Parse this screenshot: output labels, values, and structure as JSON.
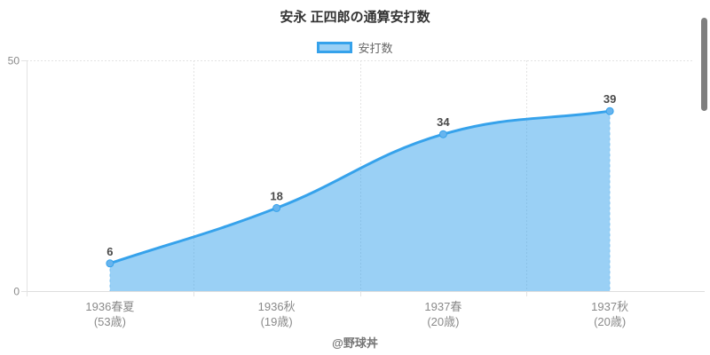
{
  "chart_data": {
    "type": "area",
    "title": "安永 正四郎の通算安打数",
    "legend_position": "top",
    "categories": [
      "1936春夏",
      "1936秋",
      "1937春",
      "1937秋"
    ],
    "category_sublabels": [
      "(53歳)",
      "(19歳)",
      "(20歳)",
      "(20歳)"
    ],
    "series": [
      {
        "name": "安打数",
        "values": [
          6,
          18,
          34,
          39
        ]
      }
    ],
    "ylim": [
      0,
      50
    ],
    "yticks": [
      0,
      50
    ],
    "grid": "dashed",
    "line_tension": 0.4,
    "colors": {
      "line": "#36a2eb",
      "fill": "rgba(54,162,235,0.5)",
      "point_fill": "#67b4ee",
      "point_stroke": "#36a2eb",
      "edge_dash": "rgba(54,162,235,0.45)",
      "grid": "#e3e3e3",
      "title_text": "#333333",
      "tick_text": "#8a8a8a",
      "value_text": "#4a4a4a",
      "legend_text": "#666666"
    }
  },
  "footer": {
    "credit": "@野球丼"
  },
  "scrollbar": {
    "visible": true
  }
}
